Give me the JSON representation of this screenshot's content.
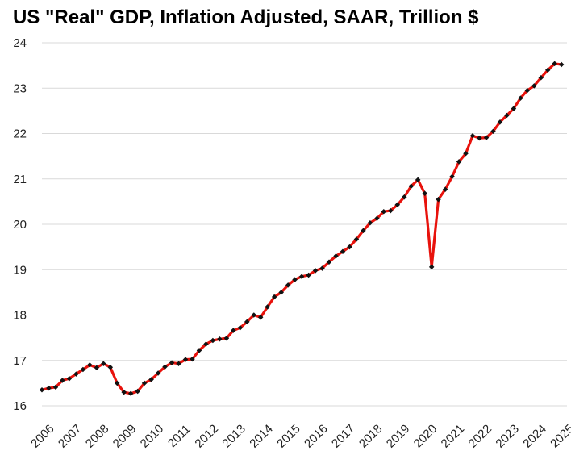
{
  "chart_data": {
    "type": "line",
    "title": "US \"Real\" GDP, Inflation Adjusted, SAAR, Trillion $",
    "xlabel": "",
    "ylabel": "",
    "xlim": [
      2006,
      2025.2
    ],
    "ylim": [
      16,
      24
    ],
    "grid": "horizontal",
    "y_ticks": [
      "16",
      "17",
      "18",
      "19",
      "20",
      "21",
      "22",
      "23",
      "24"
    ],
    "x_ticks": [
      "2006",
      "2007",
      "2008",
      "2009",
      "2010",
      "2011",
      "2012",
      "2013",
      "2014",
      "2015",
      "2016",
      "2017",
      "2018",
      "2019",
      "2020",
      "2021",
      "2022",
      "2023",
      "2024",
      "2025"
    ],
    "colors": {
      "line": "#e8120c",
      "marker": "#111111",
      "grid": "#d9d9d9"
    },
    "series": [
      {
        "x": [
          2006.0,
          2006.25,
          2006.5,
          2006.75,
          2007.0,
          2007.25,
          2007.5,
          2007.75,
          2008.0,
          2008.25,
          2008.5,
          2008.75,
          2009.0,
          2009.25,
          2009.5,
          2009.75,
          2010.0,
          2010.25,
          2010.5,
          2010.75,
          2011.0,
          2011.25,
          2011.5,
          2011.75,
          2012.0,
          2012.25,
          2012.5,
          2012.75,
          2013.0,
          2013.25,
          2013.5,
          2013.75,
          2014.0,
          2014.25,
          2014.5,
          2014.75,
          2015.0,
          2015.25,
          2015.5,
          2015.75,
          2016.0,
          2016.25,
          2016.5,
          2016.75,
          2017.0,
          2017.25,
          2017.5,
          2017.75,
          2018.0,
          2018.25,
          2018.5,
          2018.75,
          2019.0,
          2019.25,
          2019.5,
          2019.75,
          2020.0,
          2020.25,
          2020.5,
          2020.75,
          2021.0,
          2021.25,
          2021.5,
          2021.75,
          2022.0,
          2022.25,
          2022.5,
          2022.75,
          2023.0,
          2023.25,
          2023.5,
          2023.75,
          2024.0,
          2024.25,
          2024.5,
          2024.75,
          2025.0
        ],
        "values": [
          16.35,
          16.39,
          16.41,
          16.56,
          16.6,
          16.7,
          16.8,
          16.9,
          16.84,
          16.93,
          16.85,
          16.5,
          16.3,
          16.27,
          16.32,
          16.5,
          16.58,
          16.72,
          16.86,
          16.95,
          16.93,
          17.02,
          17.03,
          17.22,
          17.36,
          17.44,
          17.47,
          17.49,
          17.66,
          17.72,
          17.85,
          18.0,
          17.95,
          18.18,
          18.4,
          18.5,
          18.66,
          18.78,
          18.85,
          18.88,
          18.98,
          19.03,
          19.17,
          19.3,
          19.4,
          19.5,
          19.67,
          19.86,
          20.03,
          20.13,
          20.28,
          20.3,
          20.43,
          20.6,
          20.84,
          20.98,
          20.68,
          19.06,
          20.55,
          20.77,
          21.05,
          21.38,
          21.56,
          21.95,
          21.9,
          21.91,
          22.05,
          22.25,
          22.4,
          22.55,
          22.78,
          22.95,
          23.05,
          23.23,
          23.4,
          23.54,
          23.52
        ]
      }
    ]
  }
}
